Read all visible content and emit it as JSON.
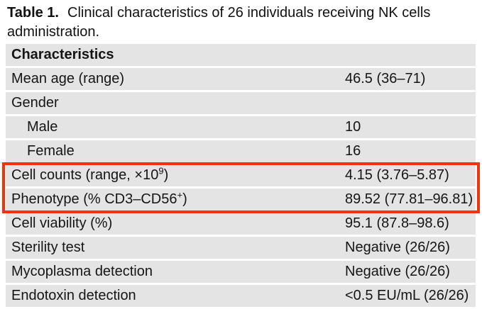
{
  "title": {
    "label": "Table 1.",
    "line1": "Clinical characteristics of 26 individuals receiving NK cells",
    "line2": "administration."
  },
  "table": {
    "header": "Characteristics",
    "rows": [
      {
        "label": "Mean age (range)",
        "value": "46.5 (36–71)"
      },
      {
        "label": "Gender",
        "value": ""
      },
      {
        "label": "Male",
        "value": "10",
        "indented": true
      },
      {
        "label": "Female",
        "value": "16",
        "indented": true
      },
      {
        "label_pre": "Cell counts (range, ×10",
        "label_sup": "9",
        "label_post": ")",
        "value": "4.15 (3.76–5.87)",
        "highlighted": true
      },
      {
        "label_pre": "Phenotype (% CD3–CD56",
        "label_sup": "+",
        "label_post": ")",
        "value": "89.52 (77.81–96.81)",
        "highlighted": true
      },
      {
        "label": "Cell viability (%)",
        "value": "95.1 (87.8–98.6)"
      },
      {
        "label": "Sterility test",
        "value": "Negative (26/26)"
      },
      {
        "label": "Mycoplasma detection",
        "value": "Negative (26/26)"
      },
      {
        "label": "Endotoxin detection",
        "value": "<0.5 EU/mL (26/26)"
      }
    ],
    "annotation": {
      "description": "red highlight box around cell counts and phenotype rows",
      "border_color": "#ee3408"
    }
  },
  "colors": {
    "row_background": "#e4e4e4",
    "page_background": "#ffffff",
    "text": "#151515",
    "highlight_border": "#ee3408"
  }
}
